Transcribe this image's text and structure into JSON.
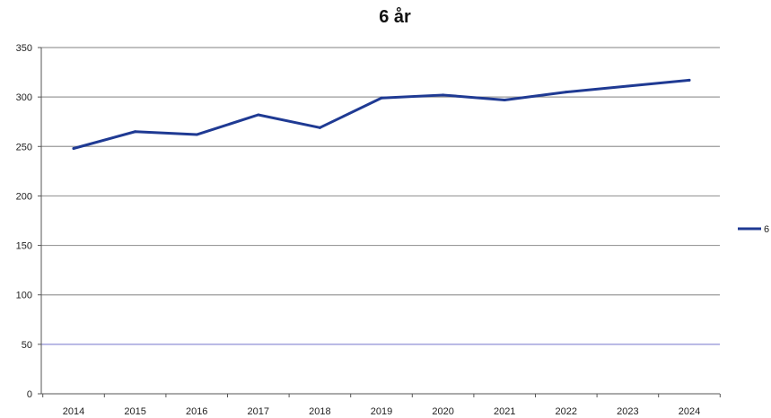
{
  "chart_data": {
    "type": "line",
    "title": "6 år",
    "xlabel": "",
    "ylabel": "",
    "categories": [
      "2014",
      "2015",
      "2016",
      "2017",
      "2018",
      "2019",
      "2020",
      "2021",
      "2022",
      "2023",
      "2024"
    ],
    "series": [
      {
        "name": "6",
        "values": [
          248,
          265,
          262,
          282,
          269,
          299,
          302,
          297,
          305,
          311,
          317
        ],
        "color": "#1f3a93"
      }
    ],
    "ylim": [
      0,
      350
    ],
    "yticks": [
      0,
      50,
      100,
      150,
      200,
      250,
      300,
      350
    ],
    "grid": true,
    "legend": "right",
    "colors": {
      "grid": "#9a9a9a",
      "grid_50": "#8f8fd6",
      "axis": "#555555",
      "line": "#1f3a93"
    }
  }
}
